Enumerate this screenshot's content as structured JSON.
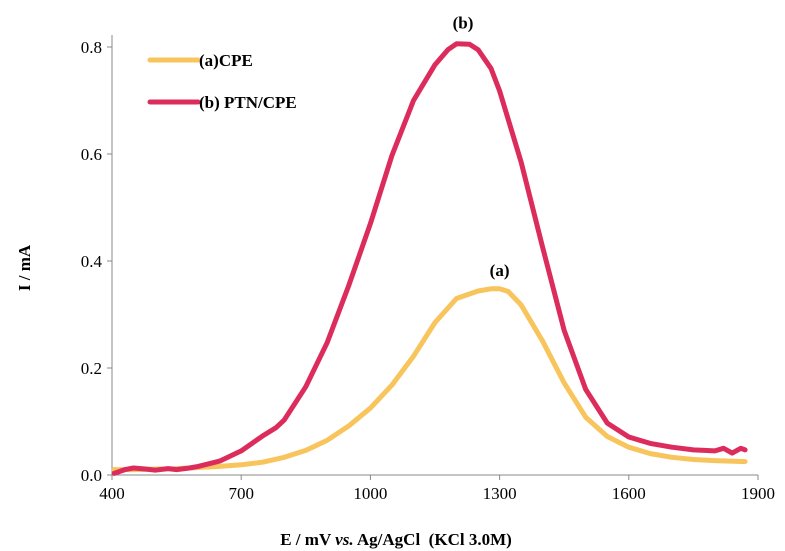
{
  "chart_data": {
    "type": "line",
    "title": "",
    "xlabel_parts": [
      "E / mV ",
      "vs.",
      " Ag/AgCl  (KCl 3.0M)"
    ],
    "ylabel": "I / mA",
    "xlim": [
      400,
      1900
    ],
    "ylim": [
      0,
      0.85
    ],
    "x_ticks": [
      400,
      700,
      1000,
      1300,
      1600,
      1900
    ],
    "x_tick_labels": [
      "400",
      "700",
      "1000",
      "1300",
      "1600",
      "1900"
    ],
    "y_ticks": [
      0,
      0.2,
      0.4,
      0.6,
      0.8
    ],
    "y_tick_labels": [
      "0.0",
      "0.2",
      "0.4",
      "0.6",
      "0.8"
    ],
    "grid": false,
    "legend_position": "top-left",
    "annotations": [
      {
        "text": "(b)",
        "x": 1215,
        "y": 0.835
      },
      {
        "text": "(a)",
        "x": 1300,
        "y": 0.372
      }
    ],
    "series": [
      {
        "name": "(a)CPE",
        "color": "#F8C45C",
        "x": [
          405,
          450,
          500,
          550,
          600,
          650,
          700,
          750,
          800,
          850,
          900,
          950,
          1000,
          1050,
          1100,
          1150,
          1200,
          1250,
          1280,
          1300,
          1320,
          1350,
          1400,
          1450,
          1500,
          1550,
          1600,
          1650,
          1700,
          1750,
          1800,
          1870
        ],
        "y": [
          0.01,
          0.01,
          0.011,
          0.012,
          0.014,
          0.016,
          0.019,
          0.024,
          0.033,
          0.046,
          0.065,
          0.092,
          0.125,
          0.168,
          0.222,
          0.285,
          0.33,
          0.344,
          0.348,
          0.348,
          0.343,
          0.318,
          0.25,
          0.172,
          0.108,
          0.072,
          0.052,
          0.04,
          0.033,
          0.029,
          0.027,
          0.025
        ]
      },
      {
        "name": "(b) PTN/CPE",
        "color": "#DC2C5C",
        "x": [
          405,
          430,
          450,
          480,
          500,
          530,
          550,
          580,
          600,
          620,
          650,
          700,
          750,
          780,
          800,
          850,
          900,
          950,
          1000,
          1050,
          1100,
          1150,
          1180,
          1200,
          1230,
          1250,
          1280,
          1300,
          1350,
          1400,
          1450,
          1500,
          1550,
          1600,
          1650,
          1700,
          1750,
          1800,
          1820,
          1840,
          1860,
          1870
        ],
        "y": [
          0.003,
          0.01,
          0.013,
          0.011,
          0.009,
          0.012,
          0.01,
          0.013,
          0.016,
          0.02,
          0.026,
          0.045,
          0.073,
          0.088,
          0.103,
          0.165,
          0.248,
          0.355,
          0.47,
          0.597,
          0.7,
          0.767,
          0.795,
          0.806,
          0.805,
          0.795,
          0.76,
          0.718,
          0.585,
          0.425,
          0.27,
          0.16,
          0.097,
          0.071,
          0.059,
          0.052,
          0.047,
          0.045,
          0.05,
          0.041,
          0.05,
          0.047
        ]
      }
    ]
  }
}
